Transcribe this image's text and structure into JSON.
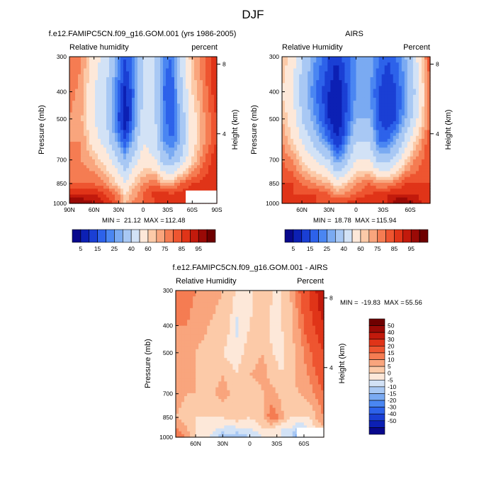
{
  "figure": {
    "title": "DJF"
  },
  "colors": {
    "rh_levels": [
      "#08088c",
      "#0c20b4",
      "#1a3fd4",
      "#2d62ea",
      "#4a86f2",
      "#7aaaf2",
      "#a8c8f4",
      "#d2e2f6",
      "#fde8d9",
      "#fccaa8",
      "#f9a57d",
      "#f57c52",
      "#ee5530",
      "#e03418",
      "#c21a0c",
      "#9a0a06",
      "#6e0000"
    ],
    "diff_levels": [
      "#08088c",
      "#0c20b4",
      "#1a3fd4",
      "#2d62ea",
      "#4a86f2",
      "#7aaaf2",
      "#a8c8f4",
      "#d2e2f6",
      "#fde8d9",
      "#fccaa8",
      "#f9a57d",
      "#f57c52",
      "#ee5530",
      "#e03418",
      "#c21a0c",
      "#9a0a06",
      "#6e0000"
    ],
    "missing": "#ffffff",
    "frame": "#000000"
  },
  "chart_data": [
    {
      "type": "heatmap",
      "id": "model",
      "title": "f.e12.FAMIPC5CN.f09_g16.GOM.001 (yrs 1986-2005)",
      "left_label": "Relative humidity",
      "right_label": "percent",
      "ylabel": "Pressure (mb)",
      "y2label": "Height (km)",
      "x_ticks": [
        "90N",
        "60N",
        "30N",
        "0",
        "30S",
        "60S",
        "90S"
      ],
      "x_tick_values": [
        90,
        60,
        30,
        0,
        -30,
        -60,
        -90
      ],
      "xlim": [
        90,
        -90
      ],
      "y_ticks": [
        "300",
        "400",
        "500",
        "700",
        "850",
        "1000"
      ],
      "y_tick_values": [
        300,
        400,
        500,
        700,
        850,
        1000
      ],
      "ylim": [
        300,
        1000
      ],
      "y2_ticks": [
        "8",
        "4"
      ],
      "y2_tick_values": [
        8,
        4
      ],
      "min_label": "MIN =",
      "min": "21.12",
      "max_label": "MAX =",
      "max": "112.48",
      "colorbar_labels": [
        "5",
        "15",
        "25",
        "40",
        "60",
        "75",
        "85",
        "95"
      ],
      "missing_region": {
        "lat_from": -52,
        "lat_to": -90,
        "p_from": 900
      },
      "lat": [
        90,
        75,
        60,
        45,
        30,
        22,
        15,
        0,
        -15,
        -25,
        -35,
        -45,
        -60,
        -75,
        -90
      ],
      "p": [
        300,
        400,
        500,
        600,
        700,
        850,
        925,
        1000
      ],
      "values": [
        [
          75,
          70,
          55,
          45,
          25,
          15,
          20,
          40,
          40,
          22,
          20,
          40,
          65,
          75,
          85
        ],
        [
          72,
          68,
          50,
          40,
          18,
          8,
          15,
          40,
          40,
          20,
          15,
          35,
          60,
          72,
          85
        ],
        [
          70,
          65,
          50,
          40,
          15,
          5,
          15,
          45,
          40,
          22,
          15,
          30,
          55,
          70,
          80
        ],
        [
          70,
          70,
          55,
          45,
          25,
          15,
          25,
          50,
          45,
          25,
          20,
          30,
          55,
          70,
          80
        ],
        [
          70,
          70,
          65,
          55,
          40,
          30,
          40,
          55,
          50,
          35,
          30,
          40,
          60,
          75,
          85
        ],
        [
          75,
          75,
          75,
          70,
          60,
          50,
          60,
          70,
          75,
          65,
          65,
          75,
          80,
          82,
          85
        ],
        [
          85,
          85,
          85,
          80,
          70,
          60,
          65,
          75,
          82,
          85,
          80,
          82,
          85,
          85,
          85
        ],
        [
          95,
          95,
          90,
          85,
          75,
          65,
          70,
          75,
          80,
          85,
          82,
          85,
          85,
          85,
          85
        ]
      ]
    },
    {
      "type": "heatmap",
      "id": "airs",
      "title": "AIRS",
      "left_label": "Relative Humidity",
      "right_label": "Percent",
      "ylabel": "Pressure (mb)",
      "y2label": "Height (km)",
      "x_ticks": [
        "60N",
        "30N",
        "0",
        "30S",
        "60S"
      ],
      "x_tick_values": [
        60,
        30,
        0,
        -30,
        -60
      ],
      "xlim": [
        82,
        -82
      ],
      "y_ticks": [
        "300",
        "400",
        "500",
        "700",
        "850",
        "1000"
      ],
      "y_tick_values": [
        300,
        400,
        500,
        700,
        850,
        1000
      ],
      "ylim": [
        300,
        1000
      ],
      "y2_ticks": [
        "8",
        "4"
      ],
      "y2_tick_values": [
        8,
        4
      ],
      "min_label": "MIN =",
      "min": "18.78",
      "max_label": "MAX =",
      "max": "115.94",
      "colorbar_labels": [
        "5",
        "15",
        "25",
        "40",
        "60",
        "75",
        "85",
        "95"
      ],
      "lat": [
        82,
        70,
        60,
        45,
        30,
        22,
        15,
        0,
        -15,
        -25,
        -35,
        -45,
        -55,
        -65,
        -82
      ],
      "p": [
        300,
        400,
        500,
        600,
        700,
        850,
        925,
        1000
      ],
      "values": [
        [
          65,
          55,
          40,
          25,
          15,
          10,
          15,
          25,
          30,
          20,
          15,
          20,
          30,
          45,
          80
        ],
        [
          60,
          50,
          35,
          20,
          10,
          5,
          10,
          25,
          25,
          15,
          10,
          15,
          25,
          40,
          75
        ],
        [
          65,
          55,
          40,
          25,
          10,
          5,
          10,
          30,
          30,
          15,
          10,
          15,
          30,
          45,
          75
        ],
        [
          70,
          60,
          50,
          35,
          20,
          10,
          15,
          40,
          40,
          20,
          20,
          30,
          45,
          60,
          80
        ],
        [
          75,
          70,
          60,
          50,
          40,
          25,
          30,
          50,
          50,
          35,
          35,
          45,
          60,
          70,
          80
        ],
        [
          80,
          80,
          75,
          70,
          65,
          55,
          60,
          70,
          75,
          70,
          70,
          75,
          80,
          80,
          80
        ],
        [
          80,
          80,
          80,
          80,
          75,
          70,
          70,
          75,
          80,
          82,
          85,
          85,
          85,
          85,
          80
        ],
        [
          80,
          80,
          80,
          80,
          80,
          80,
          80,
          85,
          85,
          85,
          85,
          95,
          95,
          90,
          80
        ]
      ]
    },
    {
      "type": "heatmap",
      "id": "diff",
      "title": "f.e12.FAMIPC5CN.f09_g16.GOM.001 - AIRS",
      "left_label": "Relative Humidity",
      "right_label": "Percent",
      "ylabel": "Pressure (mb)",
      "y2label": "Height (km)",
      "x_ticks": [
        "60N",
        "30N",
        "0",
        "30S",
        "60S"
      ],
      "x_tick_values": [
        60,
        30,
        0,
        -30,
        -60
      ],
      "xlim": [
        82,
        -82
      ],
      "y_ticks": [
        "300",
        "400",
        "500",
        "700",
        "850",
        "1000"
      ],
      "y_tick_values": [
        300,
        400,
        500,
        700,
        850,
        1000
      ],
      "ylim": [
        300,
        1000
      ],
      "y2_ticks": [
        "8",
        "4"
      ],
      "y2_tick_values": [
        8,
        4
      ],
      "min_label": "MIN =",
      "min": "-19.83",
      "max_label": "MAX =",
      "max": "55.56",
      "colorbar_labels": [
        "50",
        "40",
        "30",
        "20",
        "15",
        "10",
        "5",
        "0",
        "-5",
        "-10",
        "-15",
        "-20",
        "-30",
        "-40",
        "-50"
      ],
      "missing_region": {
        "lat_from": -52,
        "lat_to": -82,
        "p_from": 925
      },
      "lat": [
        82,
        70,
        60,
        45,
        30,
        22,
        15,
        0,
        -15,
        -25,
        -35,
        -45,
        -55,
        -65,
        -82
      ],
      "p": [
        300,
        400,
        500,
        600,
        700,
        850,
        925,
        1000
      ],
      "values": [
        [
          20,
          18,
          15,
          12,
          10,
          8,
          5,
          3,
          10,
          5,
          5,
          10,
          20,
          30,
          50
        ],
        [
          15,
          15,
          12,
          10,
          8,
          5,
          -2,
          5,
          10,
          3,
          5,
          8,
          15,
          25,
          40
        ],
        [
          15,
          12,
          10,
          8,
          5,
          3,
          2,
          8,
          10,
          5,
          3,
          8,
          12,
          18,
          30
        ],
        [
          12,
          12,
          10,
          8,
          10,
          8,
          5,
          10,
          12,
          8,
          5,
          8,
          12,
          15,
          25
        ],
        [
          12,
          10,
          10,
          8,
          12,
          10,
          8,
          5,
          10,
          12,
          8,
          8,
          10,
          12,
          20
        ],
        [
          10,
          8,
          5,
          5,
          5,
          8,
          8,
          5,
          10,
          20,
          12,
          5,
          5,
          5,
          15
        ],
        [
          15,
          10,
          5,
          3,
          0,
          -3,
          0,
          0,
          5,
          5,
          0,
          0,
          -5,
          0,
          10
        ],
        [
          20,
          15,
          5,
          0,
          -10,
          -5,
          -10,
          -5,
          0,
          5,
          0,
          -5,
          -15,
          0,
          10
        ]
      ]
    }
  ]
}
